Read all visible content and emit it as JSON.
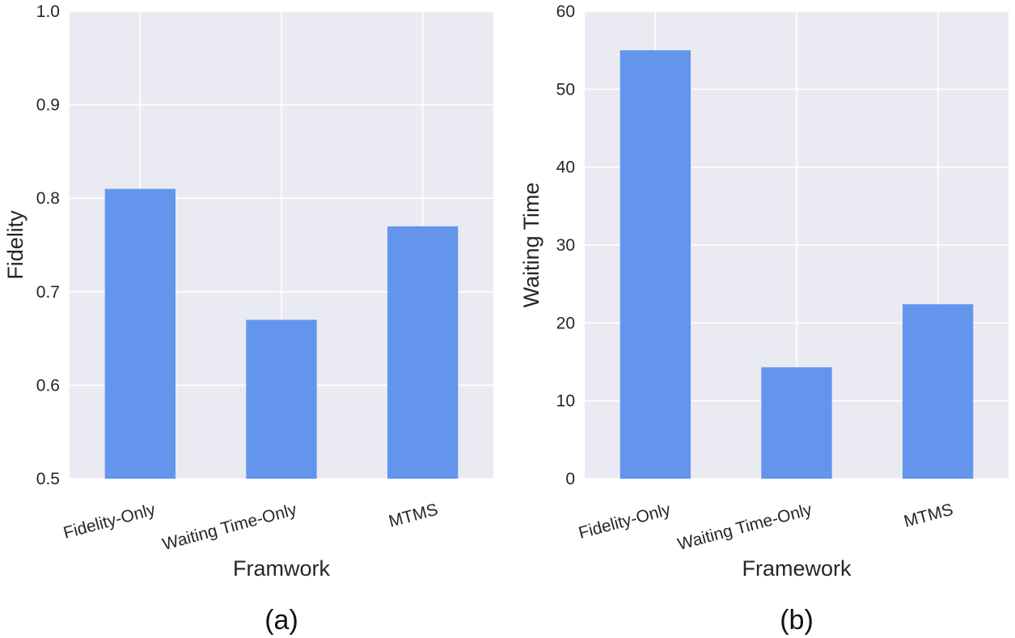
{
  "chart_data": [
    {
      "type": "bar",
      "panel_label": "(a)",
      "categories": [
        "Fidelity-Only",
        "Waiting Time-Only",
        "MTMS"
      ],
      "values": [
        0.81,
        0.67,
        0.77
      ],
      "xlabel": "Framwork",
      "ylabel": "Fidelity",
      "ylim": [
        0.5,
        1.0
      ],
      "yticks": [
        0.5,
        0.6,
        0.7,
        0.8,
        0.9,
        1.0
      ],
      "ytick_labels": [
        "0.5",
        "0.6",
        "0.7",
        "0.8",
        "0.9",
        "1.0"
      ],
      "bar_color": "#6495ed",
      "background": "#eaeaf2",
      "grid": true
    },
    {
      "type": "bar",
      "panel_label": "(b)",
      "categories": [
        "Fidelity-Only",
        "Waiting Time-Only",
        "MTMS"
      ],
      "values": [
        55,
        14.3,
        22.4
      ],
      "xlabel": "Framework",
      "ylabel": "Waiting Time",
      "ylim": [
        0,
        60
      ],
      "yticks": [
        0,
        10,
        20,
        30,
        40,
        50,
        60
      ],
      "ytick_labels": [
        "0",
        "10",
        "20",
        "30",
        "40",
        "50",
        "60"
      ],
      "bar_color": "#6495ed",
      "background": "#eaeaf2",
      "grid": true
    }
  ]
}
